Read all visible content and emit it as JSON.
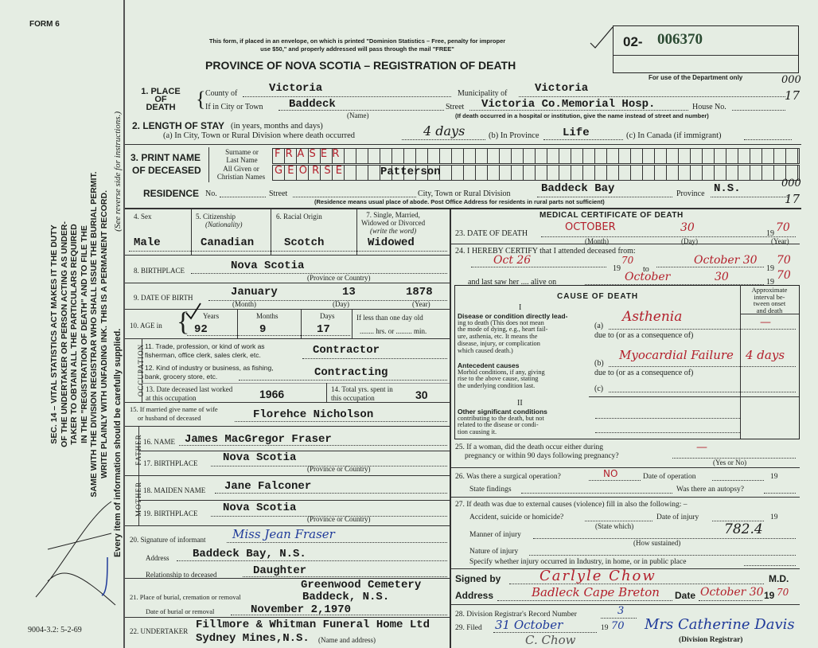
{
  "form": {
    "number_label": "FORM 6",
    "print_code": "9004-3.2: 5-2-69",
    "side_notice": [
      "SEC. 14 – VITAL STATISTICS ACT MAKES IT THE DUTY",
      "OF THE UNDERTAKER OR PERSON ACTING AS UNDER-",
      "TAKER TO OBTAIN ALL THE PARTICULARS REQUIRED",
      "IN THE \"REGISTRATION OF DEATH\" AND TO FILE THE",
      "SAME WITH THE DIVISION REGISTRAR WHO SHALL ISSUE THE BURIAL PERMIT.",
      "WRITE PLAINLY WITH UNFADING INK. THIS IS A PERMANENT RECORD."
    ],
    "side_supply": "Every item of information should be carefully supplied.",
    "side_instructions": "(See reverse side for instructions.)"
  },
  "header": {
    "mail_notice_1": "This form, if placed in an envelope, on which is printed \"Dominion Statistics – Free, penalty for improper",
    "mail_notice_2": "use $50,\" and properly addressed will pass through the mail \"FREE\"",
    "title": "PROVINCE OF NOVA SCOTIA – REGISTRATION OF DEATH",
    "reg_prefix": "02-",
    "reg_number": "006370",
    "dept_only": "For use of the Department only",
    "margin_code_1": "000",
    "margin_code_2": "17"
  },
  "place_of_death": {
    "label_1": "1. PLACE",
    "label_2": "OF",
    "label_3": "DEATH",
    "county_label": "County of",
    "county": "Victoria",
    "municipality_label": "Municipality of",
    "municipality": "Victoria",
    "city_label": "If in City or Town",
    "city": "Baddeck",
    "name_note": "(Name)",
    "street_label": "Street",
    "street": "Victoria Co.Memorial Hosp.",
    "house_label": "House No.",
    "hospital_note": "(If death occurred in a hospital or institution, give the name instead of street and number)"
  },
  "length_of_stay": {
    "label": "2. LENGTH OF STAY",
    "label_note": "(in years, months and days)",
    "city_label": "(a) In City, Town or Rural Division where death occurred",
    "city": "4 days",
    "province_label": "(b) In Province",
    "province": "Life",
    "canada_label": "(c) In Canada (if immigrant)"
  },
  "name": {
    "label_1": "3. PRINT NAME",
    "label_2": "OF DECEASED",
    "surname_label": "Surname or Last Name",
    "given_label": "All Given or Christian Names",
    "surname": "FRASER",
    "given": "GEORSE",
    "given_typed": "Patterson"
  },
  "residence": {
    "label": "RESIDENCE",
    "no_label": "No.",
    "street_label": "Street",
    "city_label": "City, Town or Rural Division",
    "city": "Baddeck Bay",
    "province_label": "Province",
    "province": "N.S.",
    "note": "(Residence means usual place of abode. Post Office Address for residents in rural parts not sufficient)",
    "margin_code_1": "000",
    "margin_code_2": "17"
  },
  "personal": {
    "sex_label": "4. Sex",
    "sex": "Male",
    "citizenship_label": "5. Citizenship",
    "citizenship_note": "(Nationality)",
    "citizenship": "Canadian",
    "racial_label": "6. Racial Origin",
    "racial": "Scotch",
    "marital_label_1": "7. Single, Married,",
    "marital_label_2": "Widowed or Divorced",
    "marital_note": "(write the word)",
    "marital": "Widowed",
    "birthplace_label": "8. BIRTHPLACE",
    "birthplace": "Nova Scotia",
    "birthplace_note": "(Province or Country)",
    "dob_label": "9. DATE OF BIRTH",
    "dob_month": "January",
    "dob_day": "13",
    "dob_year": "1878",
    "month_note": "(Month)",
    "day_note": "(Day)",
    "year_note": "(Year)",
    "age_label": "10. AGE in",
    "years_label": "Years",
    "months_label": "Months",
    "days_label": "Days",
    "age_years": "92",
    "age_months": "9",
    "age_days": "17",
    "less_day_label": "If less than one day old",
    "hrs_min_label": "........ hrs. or ......... min."
  },
  "occupation": {
    "band": "OCCUPATION",
    "trade_label_1": "11. Trade, profession, or kind of work as",
    "trade_label_2": "fisherman, office clerk, sales clerk, etc.",
    "trade": "Contractor",
    "industry_label_1": "12. Kind of industry or business, as fishing,",
    "industry_label_2": "bank, grocery store, etc.",
    "industry": "Contracting",
    "last_worked_label_1": "13. Date deceased last worked",
    "last_worked_label_2": "at this occupation",
    "last_worked": "1966",
    "total_years_label_1": "14. Total yrs. spent in",
    "total_years_label_2": "this occupation",
    "total_years": "30"
  },
  "spouse": {
    "label_1": "15. If married give name of wife",
    "label_2": "or husband of deceased",
    "name": "Florehce Nicholson"
  },
  "father": {
    "band": "FATHER",
    "name_label": "16. NAME",
    "name": "James MacGregor Fraser",
    "birthplace_label": "17. BIRTHPLACE",
    "birthplace": "Nova Scotia",
    "birthplace_note": "(Province or Country)"
  },
  "mother": {
    "band": "MOTHER",
    "name_label": "18. MAIDEN NAME",
    "name": "Jane Falconer",
    "birthplace_label": "19. BIRTHPLACE",
    "birthplace": "Nova Scotia",
    "birthplace_note": "(Province or Country)"
  },
  "informant": {
    "signature_label": "20. Signature of informant",
    "signature": "Miss Jean Fraser",
    "address_label": "Address",
    "address": "Baddeck Bay, N.S.",
    "relationship_label": "Relationship to deceased",
    "relationship": "Daughter"
  },
  "burial": {
    "place_label": "21. Place of burial, cremation or removal",
    "place_1": "Greenwood Cemetery",
    "place_2": "Baddeck, N.S.",
    "date_label": "Date of burial or removal",
    "date": "November 2,1970"
  },
  "undertaker": {
    "label": "22. UNDERTAKER",
    "name": "Fillmore & Whitman Funeral Home Ltd",
    "address": "Sydney Mines,N.S.",
    "note": "(Name and address)"
  },
  "medical": {
    "title": "MEDICAL CERTIFICATE OF DEATH",
    "dod_label": "23. DATE OF DEATH",
    "dod_month": "OCTOBER",
    "dod_day": "30",
    "dod_year_prefix": "19",
    "dod_year": "70",
    "month_note": "(Month)",
    "day_note": "(Day)",
    "year_note": "(Year)",
    "certify_label": "24. I HEREBY CERTIFY that I attended deceased from:",
    "from_date": "Oct 26",
    "from_year_prefix": "19",
    "from_year": "70",
    "to_label": "to",
    "to_date": "October 30",
    "to_year_prefix": "19",
    "to_year": "70",
    "last_saw_label": "and last saw her .... alive on",
    "last_saw_month": "October",
    "last_saw_day": "30",
    "last_saw_year_prefix": "19",
    "last_saw_year": "70"
  },
  "cause": {
    "title": "CAUSE OF DEATH",
    "interval_header": [
      "Approximate",
      "interval be-",
      "tween onset",
      "and death"
    ],
    "part_1": "I",
    "direct_heading": "Disease or condition directly lead-",
    "direct_text": [
      "ing to death (This does not mean",
      "the mode of dying, e.g., heart fail-",
      "ure, asthenia, etc. It means the",
      "disease, injury, or complication",
      "which caused death.)"
    ],
    "antecedent_heading": "Antecedent causes",
    "antecedent_text": [
      "Morbid conditions, if any, giving",
      "rise to the above cause, stating",
      "the underlying condition last."
    ],
    "a_label": "(a)",
    "a": "Asthenia",
    "a_interval": "—",
    "due_to": "due to (or as a consequence of)",
    "b_label": "(b)",
    "b": "Myocardial Failure",
    "b_interval": "4 days",
    "c_label": "(c)",
    "part_2": "II",
    "other_heading": "Other significant conditions",
    "other_text": [
      "contributing to the death, but not",
      "related to the disease or condi-",
      "tion causing it."
    ]
  },
  "pregnancy": {
    "label_1": "25. If a woman, did the death occur either during",
    "label_2": "pregnancy or within 90 days following pregnancy?",
    "value": "—",
    "note": "(Yes or No)"
  },
  "operation": {
    "label": "26. Was there a surgical operation?",
    "value": "NO",
    "date_label": "Date of operation",
    "year_prefix": "19",
    "findings_label": "State findings",
    "autopsy_label": "Was there an autopsy?"
  },
  "external": {
    "label": "27. If death was due to external causes (violence) fill in also the following: –",
    "accident_label": "Accident, suicide or homicide?",
    "state_which": "(State which)",
    "injury_date_label": "Date of injury",
    "year_prefix": "19",
    "manner_label": "Manner of injury",
    "manner_code": "782.4",
    "how_sustained": "(How sustained)",
    "nature_label": "Nature of injury",
    "place_label": "Specify whether injury occurred in Industry, in home, or in public place"
  },
  "signature": {
    "signed_label": "Signed by",
    "signed": "Carlyle Chow",
    "md": "M.D.",
    "address_label": "Address",
    "address": "Badleck Cape Breton",
    "date_label": "Date",
    "date": "October 30",
    "year_prefix": "19",
    "year": "70"
  },
  "registrar": {
    "record_label": "28. Division Registrar's Record Number",
    "record": "3",
    "filed_label": "29. Filed",
    "filed": "31 October",
    "year_prefix": "19",
    "year": "70",
    "signature": "Mrs Catherine Davis",
    "role": "(Division Registrar)",
    "initials": "C. Chow"
  }
}
